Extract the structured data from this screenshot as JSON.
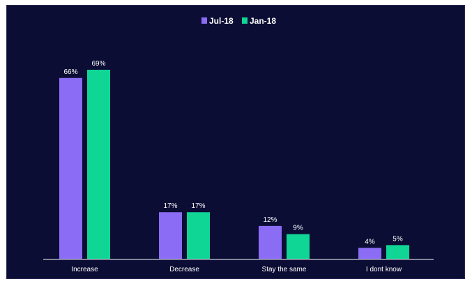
{
  "colors": {
    "background": "#0c0d35",
    "axis": "#ffffff",
    "text": "#ffffff"
  },
  "chart_data": {
    "type": "bar",
    "categories": [
      "Increase",
      "Decrease",
      "Stay the same",
      "I dont know"
    ],
    "series": [
      {
        "name": "Jul-18",
        "color": "#8b6cf5",
        "values": [
          66,
          17,
          12,
          4
        ],
        "labels": [
          "66%",
          "17%",
          "12%",
          "4%"
        ]
      },
      {
        "name": "Jan-18",
        "color": "#0fd694",
        "values": [
          69,
          17,
          9,
          5
        ],
        "labels": [
          "69%",
          "17%",
          "9%",
          "5%"
        ]
      }
    ],
    "ylim": [
      0,
      69
    ],
    "legend": "top-center",
    "grid": false,
    "unit": "%"
  }
}
